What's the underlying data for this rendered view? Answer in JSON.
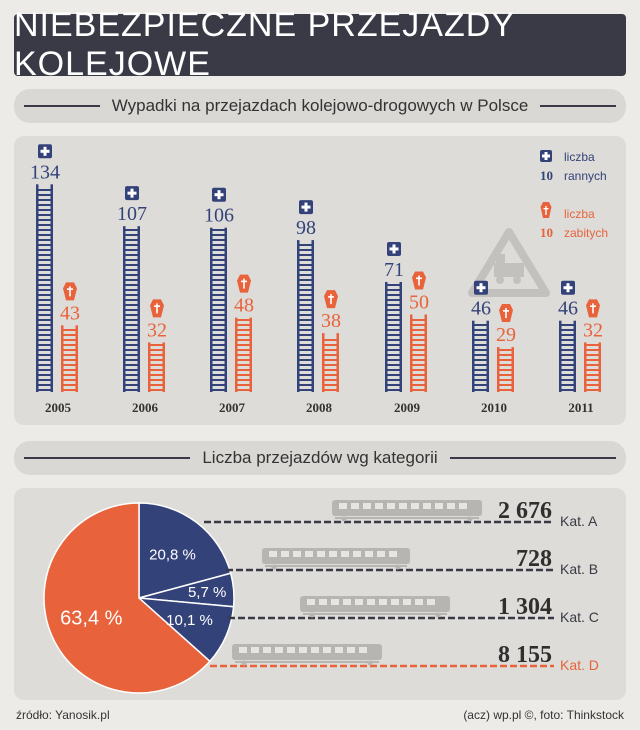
{
  "title": "NIEBEZPIECZNE PRZEJAZDY KOLEJOWE",
  "section1_title": "Wypadki na przejazdach kolejowo-drogowych w Polsce",
  "section2_title": "Liczba przejazdów wg kategorii",
  "colors": {
    "blue": "#34427a",
    "orange": "#e8633b",
    "dark": "#3a3a46",
    "gray": "#b6b5b1"
  },
  "legend": {
    "scale": "10",
    "injured_line1": "liczba",
    "injured_line2": "rannych",
    "killed_line1": "liczba",
    "killed_line2": "zabitych"
  },
  "chart_data": [
    {
      "type": "bar",
      "title": "Wypadki na przejazdach kolejowo-drogowych w Polsce",
      "categories": [
        "2005",
        "2006",
        "2007",
        "2008",
        "2009",
        "2010",
        "2011"
      ],
      "series": [
        {
          "name": "liczba rannych",
          "values": [
            134,
            107,
            106,
            98,
            71,
            46,
            46
          ]
        },
        {
          "name": "liczba zabitych",
          "values": [
            43,
            32,
            48,
            38,
            50,
            29,
            32
          ]
        }
      ]
    },
    {
      "type": "pie",
      "title": "Liczba przejazdów wg kategorii",
      "categories": [
        "Kat. A",
        "Kat. B",
        "Kat. C",
        "Kat. D"
      ],
      "values": [
        2676,
        728,
        1304,
        8155
      ],
      "value_labels": [
        "2 676",
        "728",
        "1 304",
        "8 155"
      ],
      "percent_labels": [
        "20,8 %",
        "5,7 %",
        "10,1 %",
        "63,4 %"
      ]
    }
  ],
  "footer": {
    "source": "źródło: Yanosik.pl",
    "credit": "(acz) wp.pl ©, foto: Thinkstock"
  }
}
